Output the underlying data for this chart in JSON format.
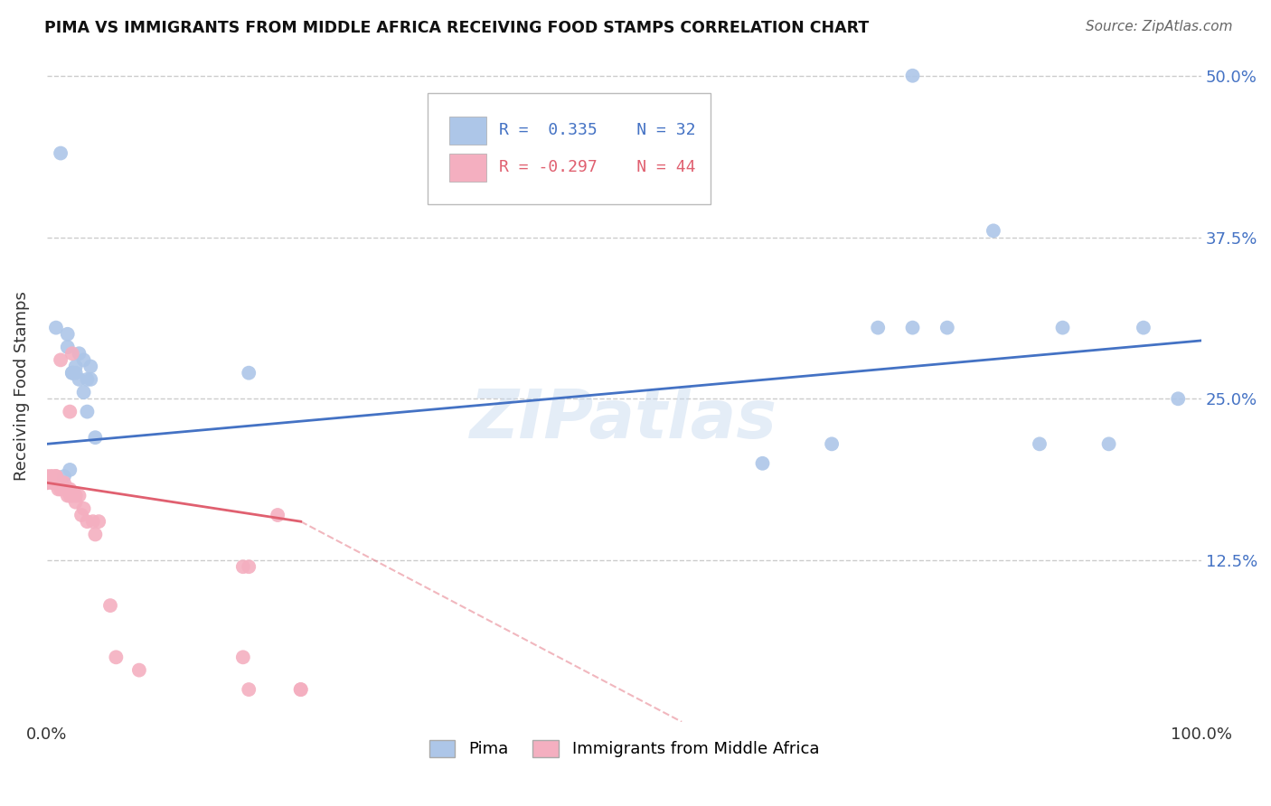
{
  "title": "PIMA VS IMMIGRANTS FROM MIDDLE AFRICA RECEIVING FOOD STAMPS CORRELATION CHART",
  "source": "Source: ZipAtlas.com",
  "ylabel": "Receiving Food Stamps",
  "background_color": "#ffffff",
  "watermark": "ZIPatlas",
  "blue_R": 0.335,
  "blue_N": 32,
  "pink_R": -0.297,
  "pink_N": 44,
  "blue_scatter_x": [
    0.008,
    0.012,
    0.018,
    0.022,
    0.025,
    0.028,
    0.032,
    0.035,
    0.038,
    0.018,
    0.022,
    0.025,
    0.028,
    0.032,
    0.035,
    0.038,
    0.042,
    0.015,
    0.02,
    0.175,
    0.62,
    0.68,
    0.72,
    0.75,
    0.78,
    0.82,
    0.86,
    0.88,
    0.92,
    0.95,
    0.98,
    0.75
  ],
  "blue_scatter_y": [
    0.305,
    0.44,
    0.29,
    0.27,
    0.275,
    0.285,
    0.255,
    0.24,
    0.275,
    0.3,
    0.27,
    0.27,
    0.265,
    0.28,
    0.265,
    0.265,
    0.22,
    0.19,
    0.195,
    0.27,
    0.2,
    0.215,
    0.305,
    0.305,
    0.305,
    0.38,
    0.215,
    0.305,
    0.215,
    0.305,
    0.25,
    0.5
  ],
  "pink_scatter_x": [
    0.0,
    0.0,
    0.0,
    0.003,
    0.005,
    0.005,
    0.005,
    0.008,
    0.008,
    0.008,
    0.01,
    0.01,
    0.01,
    0.012,
    0.012,
    0.015,
    0.015,
    0.018,
    0.018,
    0.02,
    0.02,
    0.02,
    0.022,
    0.025,
    0.025,
    0.028,
    0.032,
    0.035,
    0.04,
    0.045,
    0.055,
    0.06,
    0.012,
    0.022,
    0.03,
    0.042,
    0.08,
    0.175,
    0.175,
    0.2,
    0.22,
    0.22,
    0.17,
    0.17
  ],
  "pink_scatter_y": [
    0.19,
    0.185,
    0.185,
    0.19,
    0.185,
    0.19,
    0.185,
    0.185,
    0.19,
    0.19,
    0.185,
    0.185,
    0.18,
    0.185,
    0.18,
    0.185,
    0.18,
    0.18,
    0.175,
    0.18,
    0.175,
    0.24,
    0.175,
    0.175,
    0.17,
    0.175,
    0.165,
    0.155,
    0.155,
    0.155,
    0.09,
    0.05,
    0.28,
    0.285,
    0.16,
    0.145,
    0.04,
    0.025,
    0.12,
    0.16,
    0.025,
    0.025,
    0.12,
    0.05
  ],
  "blue_line_color": "#4472c4",
  "pink_line_color": "#e06070",
  "blue_scatter_color": "#adc6e8",
  "pink_scatter_color": "#f4afc0",
  "xlim": [
    0.0,
    1.0
  ],
  "ylim": [
    0.0,
    0.52
  ],
  "grid_color": "#cccccc",
  "grid_style": "--",
  "ytick_positions": [
    0.125,
    0.25,
    0.375,
    0.5
  ],
  "ytick_labels": [
    "12.5%",
    "25.0%",
    "37.5%",
    "50.0%"
  ],
  "xtick_positions": [
    0.0,
    0.2,
    0.4,
    0.6,
    0.8,
    1.0
  ],
  "xtick_labels": [
    "0.0%",
    "",
    "",
    "",
    "",
    "100.0%"
  ]
}
